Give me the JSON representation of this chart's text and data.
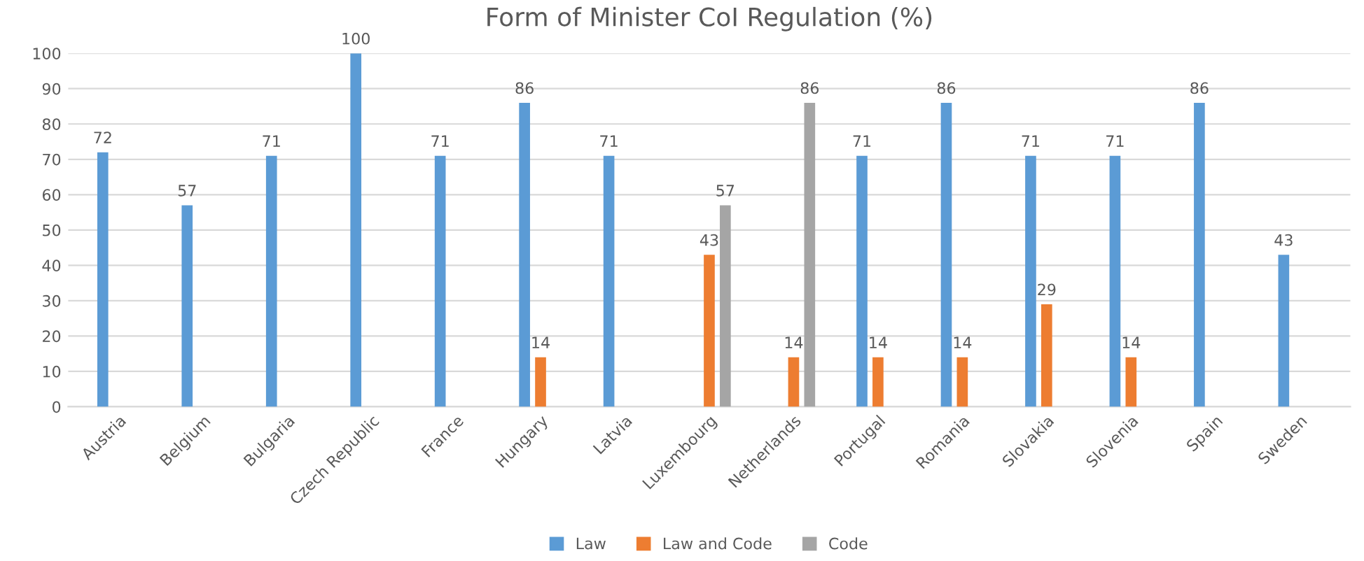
{
  "chart_data": {
    "type": "bar",
    "title": "Form of Minister CoI Regulation (%)",
    "categories": [
      "Austria",
      "Belgium",
      "Bulgaria",
      "Czech Republic",
      "France",
      "Hungary",
      "Latvia",
      "Luxembourg",
      "Netherlands",
      "Portugal",
      "Romania",
      "Slovakia",
      "Slovenia",
      "Spain",
      "Sweden"
    ],
    "series": [
      {
        "name": "Law",
        "color": "#5b9bd5",
        "values": [
          72,
          57,
          71,
          100,
          71,
          86,
          71,
          null,
          null,
          71,
          86,
          71,
          71,
          86,
          43
        ]
      },
      {
        "name": "Law and Code",
        "color": "#ed7d31",
        "values": [
          null,
          null,
          null,
          null,
          null,
          14,
          null,
          43,
          14,
          14,
          14,
          29,
          14,
          null,
          null
        ]
      },
      {
        "name": "Code",
        "color": "#a5a5a5",
        "values": [
          null,
          null,
          null,
          null,
          null,
          null,
          null,
          57,
          86,
          null,
          null,
          null,
          null,
          null,
          null
        ]
      }
    ],
    "ylim": [
      0,
      100
    ],
    "yticks": [
      0,
      10,
      20,
      30,
      40,
      50,
      60,
      70,
      80,
      90,
      100
    ],
    "grid": "y",
    "legend": "bottom",
    "data_labels": true
  }
}
